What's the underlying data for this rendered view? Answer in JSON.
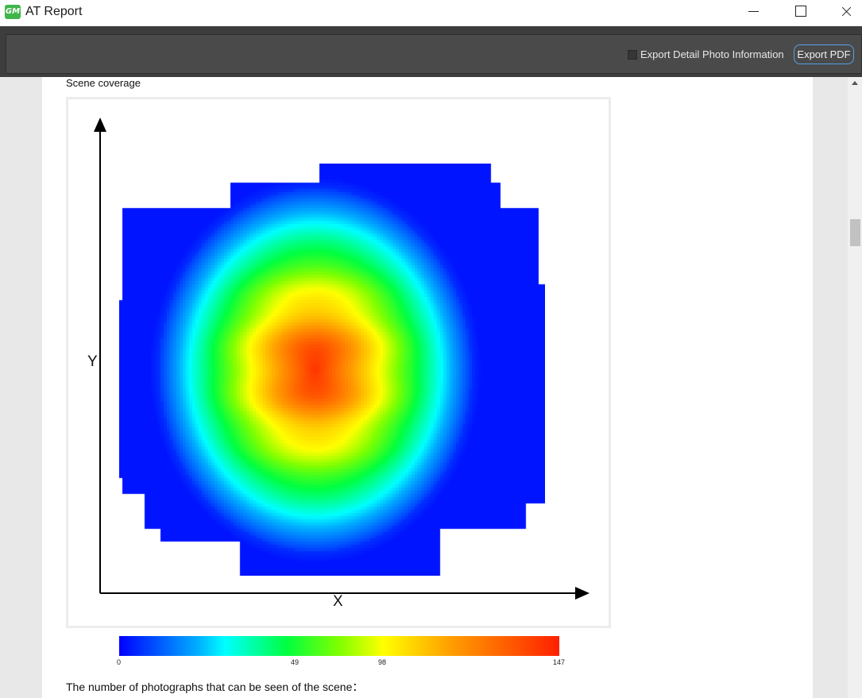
{
  "window": {
    "title": "AT Report",
    "app_icon_text": "GM"
  },
  "toolbar": {
    "checkbox_label": "Export Detail Photo Information",
    "checkbox_checked": false,
    "export_button_label": "Export PDF",
    "accent_color": "#5aa0e8"
  },
  "report": {
    "section_title": "Scene coverage",
    "bottom_text": "The number of photographs that can be seen of the scene："
  },
  "chart_data": {
    "type": "heatmap",
    "xlabel": "X",
    "ylabel": "Y",
    "colorbar": {
      "ticks": [
        "0",
        "49",
        "98",
        "147"
      ],
      "min": 0,
      "max": 147,
      "colors": [
        "#0000ff",
        "#00ffff",
        "#00ff40",
        "#ffff00",
        "#ff2000"
      ]
    },
    "peak_value": 147
  }
}
